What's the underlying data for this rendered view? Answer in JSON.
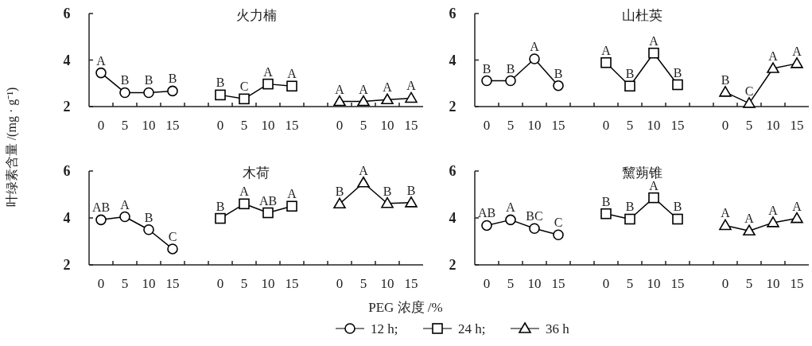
{
  "chart_data": [
    {
      "type": "line",
      "title": "火力楠",
      "ylabel": "叶绿素含量 /(mg · g⁻¹)",
      "legend": "bottom",
      "categories": [
        "0",
        "5",
        "10",
        "15",
        null,
        "0",
        "5",
        "10",
        "15",
        null,
        "0",
        "5",
        "10",
        "15"
      ],
      "ylim": [
        2,
        6
      ],
      "yticks": [
        2,
        4,
        6
      ],
      "series": [
        {
          "name": "12 h;",
          "color": "#000000",
          "marker": "circle",
          "values": [
            3.45,
            2.6,
            2.6,
            2.67,
            null,
            null,
            null,
            null,
            null,
            null,
            null,
            null,
            null,
            null
          ],
          "value_labels": [
            "A",
            "B",
            "B",
            "B",
            null,
            null,
            null,
            null,
            null,
            null,
            null,
            null,
            null,
            null
          ]
        },
        {
          "name": "24 h;",
          "color": "#000000",
          "marker": "square",
          "values": [
            null,
            null,
            null,
            null,
            null,
            2.5,
            2.33,
            2.97,
            2.88,
            null,
            null,
            null,
            null,
            null
          ],
          "value_labels": [
            null,
            null,
            null,
            null,
            null,
            "B",
            "C",
            "A",
            "A",
            null,
            null,
            null,
            null,
            null
          ]
        },
        {
          "name": "36 h",
          "color": "#000000",
          "marker": "triangle",
          "values": [
            null,
            null,
            null,
            null,
            null,
            null,
            null,
            null,
            null,
            null,
            2.22,
            2.22,
            2.3,
            2.36
          ],
          "value_labels": [
            null,
            null,
            null,
            null,
            null,
            null,
            null,
            null,
            null,
            null,
            "A",
            "A",
            "A",
            "A"
          ]
        }
      ]
    },
    {
      "type": "line",
      "title": "山杜英",
      "categories": [
        "0",
        "5",
        "10",
        "15",
        null,
        "0",
        "5",
        "10",
        "15",
        null,
        "0",
        "5",
        "10",
        "15"
      ],
      "ylim": [
        2,
        6
      ],
      "yticks": [
        2,
        4,
        6
      ],
      "series": [
        {
          "color": "#000000",
          "marker": "circle",
          "values": [
            3.11,
            3.11,
            4.05,
            2.9,
            null,
            null,
            null,
            null,
            null,
            null,
            null,
            null,
            null,
            null
          ],
          "value_labels": [
            "B",
            "B",
            "A",
            "B",
            null,
            null,
            null,
            null,
            null,
            null,
            null,
            null,
            null,
            null
          ]
        },
        {
          "color": "#000000",
          "marker": "square",
          "values": [
            null,
            null,
            null,
            null,
            null,
            3.89,
            2.88,
            4.3,
            2.94,
            null,
            null,
            null,
            null,
            null
          ],
          "value_labels": [
            null,
            null,
            null,
            null,
            null,
            "A",
            "B",
            "A",
            "B",
            null,
            null,
            null,
            null,
            null
          ]
        },
        {
          "color": "#000000",
          "marker": "triangle",
          "values": [
            null,
            null,
            null,
            null,
            null,
            null,
            null,
            null,
            null,
            null,
            2.62,
            2.14,
            3.64,
            3.85
          ],
          "value_labels": [
            null,
            null,
            null,
            null,
            null,
            null,
            null,
            null,
            null,
            null,
            "B",
            "C",
            "A",
            "A"
          ]
        }
      ]
    },
    {
      "type": "line",
      "title": "木荷",
      "xlabel": "PEG 浓度 /%",
      "categories": [
        "0",
        "5",
        "10",
        "15",
        null,
        "0",
        "5",
        "10",
        "15",
        null,
        "0",
        "5",
        "10",
        "15"
      ],
      "ylim": [
        2,
        6
      ],
      "yticks": [
        2,
        4,
        6
      ],
      "series": [
        {
          "color": "#000000",
          "marker": "circle",
          "values": [
            3.92,
            4.05,
            3.5,
            2.68,
            null,
            null,
            null,
            null,
            null,
            null,
            null,
            null,
            null,
            null
          ],
          "value_labels": [
            "AB",
            "A",
            "B",
            "C",
            null,
            null,
            null,
            null,
            null,
            null,
            null,
            null,
            null,
            null
          ]
        },
        {
          "color": "#000000",
          "marker": "square",
          "values": [
            null,
            null,
            null,
            null,
            null,
            3.98,
            4.6,
            4.22,
            4.5,
            null,
            null,
            null,
            null,
            null
          ],
          "value_labels": [
            null,
            null,
            null,
            null,
            null,
            "B",
            "A",
            "AB",
            "A",
            null,
            null,
            null,
            null,
            null
          ]
        },
        {
          "color": "#000000",
          "marker": "triangle",
          "values": [
            null,
            null,
            null,
            null,
            null,
            null,
            null,
            null,
            null,
            null,
            4.6,
            5.5,
            4.62,
            4.65
          ],
          "value_labels": [
            null,
            null,
            null,
            null,
            null,
            null,
            null,
            null,
            null,
            null,
            "B",
            "A",
            "B",
            "B"
          ]
        }
      ]
    },
    {
      "type": "line",
      "title": "黧蒴锥",
      "categories": [
        "0",
        "5",
        "10",
        "15",
        null,
        "0",
        "5",
        "10",
        "15",
        null,
        "0",
        "5",
        "10",
        "15"
      ],
      "ylim": [
        2,
        6
      ],
      "yticks": [
        2,
        4,
        6
      ],
      "series": [
        {
          "color": "#000000",
          "marker": "circle",
          "values": [
            3.68,
            3.92,
            3.55,
            3.28,
            null,
            null,
            null,
            null,
            null,
            null,
            null,
            null,
            null,
            null
          ],
          "value_labels": [
            "AB",
            "A",
            "BC",
            "C",
            null,
            null,
            null,
            null,
            null,
            null,
            null,
            null,
            null,
            null
          ]
        },
        {
          "color": "#000000",
          "marker": "square",
          "values": [
            null,
            null,
            null,
            null,
            null,
            4.18,
            3.95,
            4.86,
            3.95,
            null,
            null,
            null,
            null,
            null
          ],
          "value_labels": [
            null,
            null,
            null,
            null,
            null,
            "B",
            "B",
            "A",
            "B",
            null,
            null,
            null,
            null,
            null
          ]
        },
        {
          "color": "#000000",
          "marker": "triangle",
          "values": [
            null,
            null,
            null,
            null,
            null,
            null,
            null,
            null,
            null,
            null,
            3.68,
            3.45,
            3.8,
            3.98
          ],
          "value_labels": [
            null,
            null,
            null,
            null,
            null,
            null,
            null,
            null,
            null,
            null,
            "A",
            "A",
            "A",
            "A"
          ]
        }
      ]
    }
  ]
}
